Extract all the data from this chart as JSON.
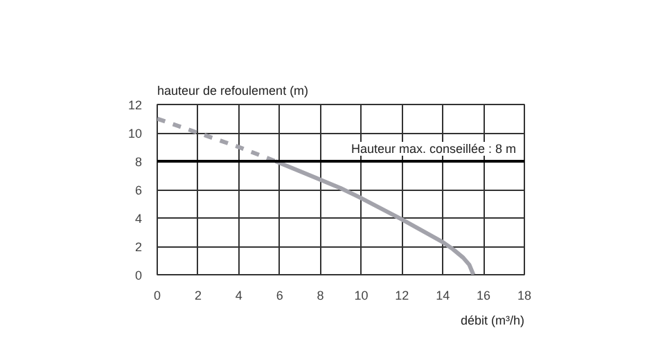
{
  "chart_data": {
    "type": "line",
    "xlabel": "débit (m³/h)",
    "ylabel": "hauteur de refoulement (m)",
    "xlim": [
      0,
      18
    ],
    "ylim": [
      0,
      12
    ],
    "xticks": [
      0,
      2,
      4,
      6,
      8,
      10,
      12,
      14,
      16,
      18
    ],
    "yticks": [
      0,
      2,
      4,
      6,
      8,
      10,
      12
    ],
    "grid": true,
    "series": [
      {
        "color": "#a3a3ab",
        "line_style": "dashed",
        "x": [
          0,
          2,
          4,
          5.8
        ],
        "values": [
          11,
          10,
          9,
          8
        ]
      },
      {
        "color": "#a3a3ab",
        "line_style": "solid",
        "x": [
          5.8,
          8,
          9,
          10,
          12,
          14,
          14.5,
          15,
          15.3,
          15.5
        ],
        "values": [
          8,
          6.7,
          6.1,
          5.4,
          3.9,
          2.3,
          1.8,
          1.2,
          0.7,
          0
        ]
      }
    ],
    "ref_lines": [
      {
        "axis": "y",
        "value": 8,
        "label": "Hauteur max. conseillée : 8 m",
        "color": "#000000"
      }
    ]
  }
}
